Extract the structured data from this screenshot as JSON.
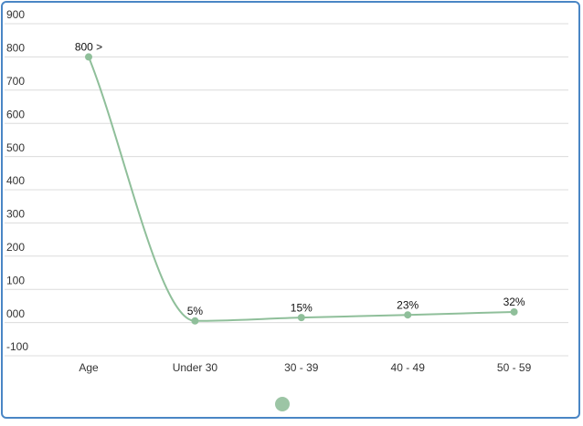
{
  "chart_data": {
    "type": "line",
    "categories": [
      "Age",
      "Under 30",
      "30 - 39",
      "40 - 49",
      "50 - 59"
    ],
    "values": [
      800,
      5,
      15,
      23,
      32
    ],
    "value_labels": [
      "800 >",
      "5%",
      "15%",
      "23%",
      "32%"
    ],
    "color": "#8fbf9a",
    "ylim": [
      -100,
      900
    ],
    "yticks": [
      -100,
      {
        "value": 0,
        "label": "000"
      },
      100,
      200,
      300,
      400,
      500,
      600,
      700,
      800,
      900
    ],
    "grid": true,
    "smooth": true
  }
}
